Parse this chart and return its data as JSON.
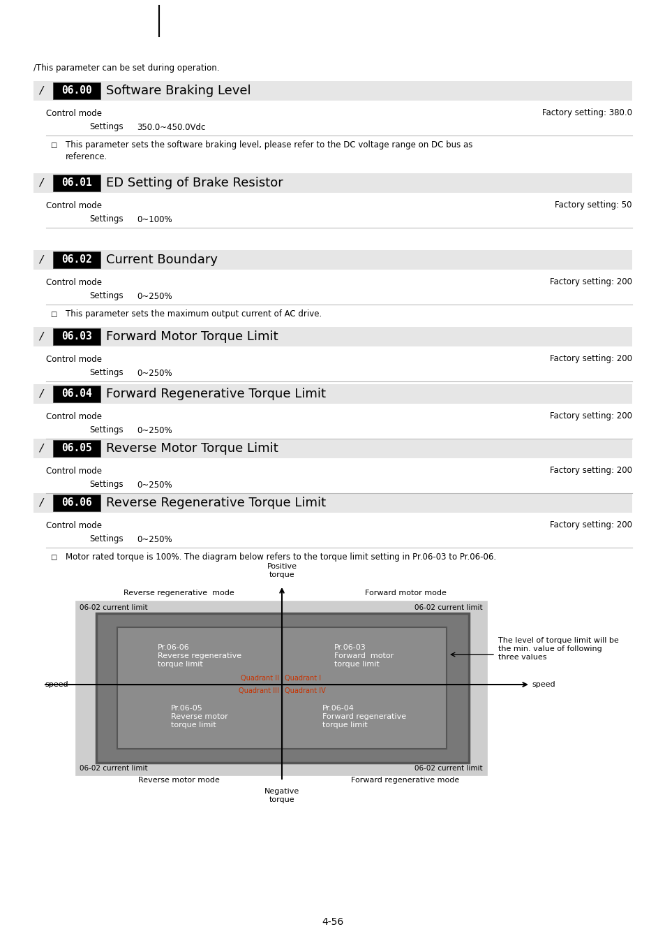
{
  "page_width": 9.54,
  "page_height": 13.5,
  "bg_color": "#ffffff",
  "header_note": "∕This parameter can be set during operation.",
  "params": [
    {
      "code": "06.00",
      "title": "Software Braking Level",
      "control_mode": "Control mode",
      "factory": "Factory setting: 380.0",
      "settings_label": "Settings",
      "settings_value": "350.0~450.0Vdc",
      "note_lines": [
        "This parameter sets the software braking level, please refer to the DC voltage range on DC bus as",
        "reference."
      ],
      "has_note": true
    },
    {
      "code": "06.01",
      "title": "ED Setting of Brake Resistor",
      "control_mode": "Control mode",
      "factory": "Factory setting: 50",
      "settings_label": "Settings",
      "settings_value": "0~100%",
      "note_lines": [],
      "has_note": false
    },
    {
      "code": "06.02",
      "title": "Current Boundary",
      "control_mode": "Control mode",
      "factory": "Factory setting: 200",
      "settings_label": "Settings",
      "settings_value": "0~250%",
      "note_lines": [
        "This parameter sets the maximum output current of AC drive."
      ],
      "has_note": true
    },
    {
      "code": "06.03",
      "title": "Forward Motor Torque Limit",
      "control_mode": "Control mode",
      "factory": "Factory setting: 200",
      "settings_label": "Settings",
      "settings_value": "0~250%",
      "note_lines": [],
      "has_note": false
    },
    {
      "code": "06.04",
      "title": "Forward Regenerative Torque Limit",
      "control_mode": "Control mode",
      "factory": "Factory setting: 200",
      "settings_label": "Settings",
      "settings_value": "0~250%",
      "note_lines": [],
      "has_note": false
    },
    {
      "code": "06.05",
      "title": "Reverse Motor Torque Limit",
      "control_mode": "Control mode",
      "factory": "Factory setting: 200",
      "settings_label": "Settings",
      "settings_value": "0~250%",
      "note_lines": [],
      "has_note": false
    },
    {
      "code": "06.06",
      "title": "Reverse Regenerative Torque Limit",
      "control_mode": "Control mode",
      "factory": "Factory setting: 200",
      "settings_label": "Settings",
      "settings_value": "0~250%",
      "note_lines": [],
      "has_note": false
    }
  ],
  "final_note": "Motor rated torque is 100%. The diagram below refers to the torque limit setting in Pr.06-03 to Pr.06-06.",
  "diagram": {
    "outer_color": "#d0d0d0",
    "mid_color": "#787878",
    "inner_color": "#8c8c8c",
    "quadrant_color": "#888888",
    "quadrant_label_color": "#c83200",
    "pr0606": "Pr.06-06\nReverse regenerative\ntorque limit",
    "pr0603": "Pr.06-03\nForward  motor\ntorque limit",
    "pr0605": "Pr.06-05\nReverse motor\ntorque limit",
    "pr0604": "Pr.06-04\nForward regenerative\ntorque limit",
    "quadrant_I": "Quadrant I",
    "quadrant_II": "Quadrant II",
    "quadrant_III": "Quadrant III",
    "quadrant_IV": "Quadrant IV",
    "positive_torque": "Positive\ntorque",
    "negative_torque": "Negative\ntorque",
    "speed_left": "speed",
    "speed_right": "speed",
    "forward_motor_mode": "Forward motor mode",
    "reverse_regen_mode": "Reverse regenerative  mode",
    "forward_regen_mode": "Forward regenerative mode",
    "reverse_motor_mode": "Reverse motor mode",
    "current_limit": "06-02 current limit",
    "side_note": "The level of torque limit will be\nthe min. value of following\nthree values"
  },
  "page_number": "4-56"
}
